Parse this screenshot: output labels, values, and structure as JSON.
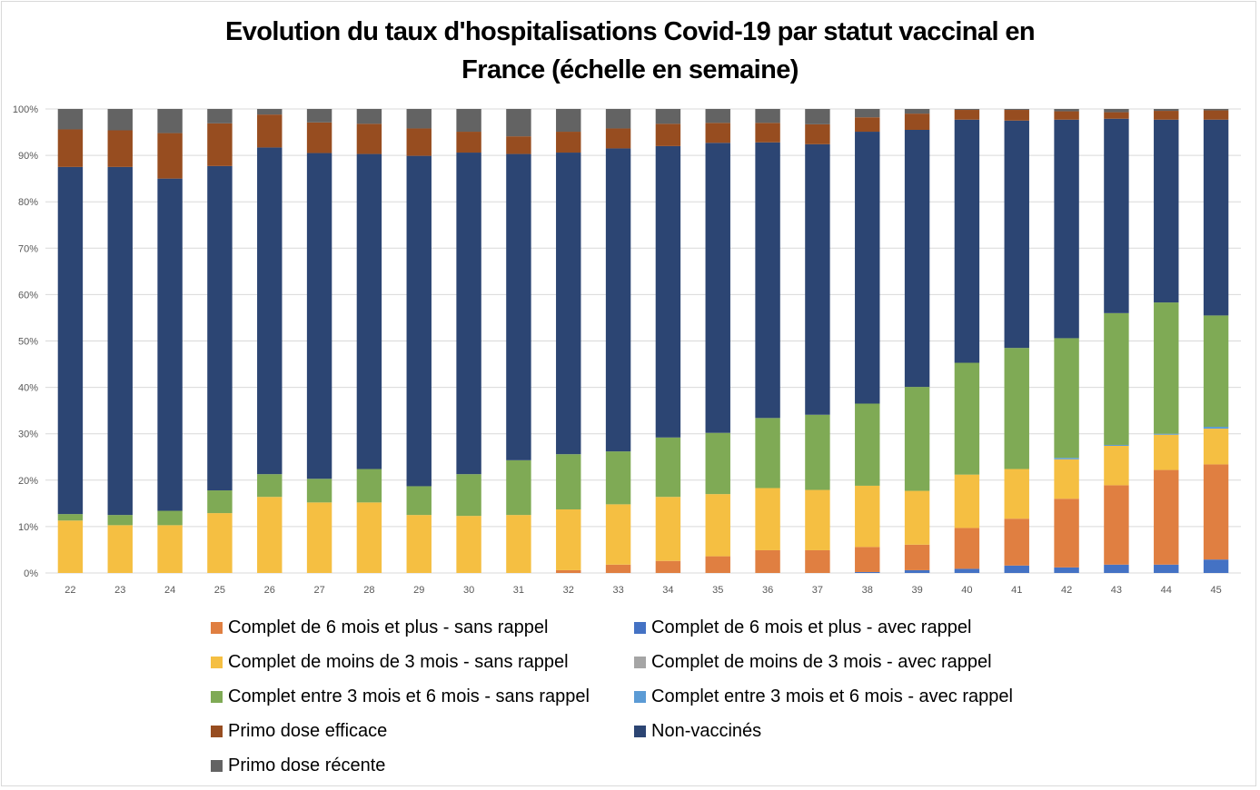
{
  "chart_data": {
    "type": "bar",
    "stacked": true,
    "normalized": true,
    "title": "Evolution du taux d'hospitalisations Covid-19 par statut vaccinal en France (échelle en semaine)",
    "title_lines": [
      "Evolution du taux d'hospitalisations Covid-19 par statut vaccinal en",
      "France (échelle en semaine)"
    ],
    "xlabel": "",
    "ylabel": "",
    "ylim": [
      0,
      100
    ],
    "yticks": [
      "0%",
      "10%",
      "20%",
      "30%",
      "40%",
      "50%",
      "60%",
      "70%",
      "80%",
      "90%",
      "100%"
    ],
    "grid": true,
    "legend_position": "bottom",
    "categories": [
      "22",
      "23",
      "24",
      "25",
      "26",
      "27",
      "28",
      "29",
      "30",
      "31",
      "32",
      "33",
      "34",
      "35",
      "36",
      "37",
      "38",
      "39",
      "40",
      "41",
      "42",
      "43",
      "44",
      "45"
    ],
    "series": [
      {
        "name": "Complet de 6 mois et plus - avec rappel",
        "color": "#4472c4",
        "values": [
          0,
          0,
          0,
          0,
          0,
          0,
          0,
          0,
          0,
          0,
          0,
          0,
          0,
          0,
          0,
          0,
          0.2,
          0.6,
          0.9,
          1.6,
          1.2,
          1.8,
          1.8,
          2.9
        ]
      },
      {
        "name": "Complet de 6 mois et plus - sans rappel",
        "color": "#e07f41",
        "values": [
          0,
          0,
          0,
          0,
          0,
          0,
          0,
          0,
          0,
          0,
          0.6,
          1.8,
          2.6,
          3.6,
          4.9,
          4.9,
          5.4,
          5.5,
          8.8,
          10.1,
          14.8,
          17.1,
          20.4,
          20.5
        ]
      },
      {
        "name": "Complet de moins de 3 mois - avec rappel",
        "color": "#a5a5a5",
        "values": [
          0,
          0,
          0,
          0,
          0,
          0,
          0,
          0,
          0,
          0,
          0,
          0,
          0,
          0,
          0,
          0,
          0,
          0,
          0,
          0,
          0,
          0,
          0,
          0
        ]
      },
      {
        "name": "Complet de moins de 3 mois - sans rappel",
        "color": "#f5bf42",
        "values": [
          11.3,
          10.3,
          10.3,
          12.9,
          16.4,
          15.2,
          15.2,
          12.5,
          12.3,
          12.5,
          13.1,
          13.0,
          13.8,
          13.4,
          13.4,
          13.0,
          13.2,
          11.6,
          11.5,
          10.7,
          8.5,
          8.5,
          7.6,
          7.7
        ]
      },
      {
        "name": "Complet entre 3 mois et 6 mois - avec rappel",
        "color": "#5b9bd5",
        "values": [
          0,
          0,
          0,
          0,
          0,
          0,
          0,
          0,
          0,
          0,
          0,
          0,
          0,
          0,
          0,
          0,
          0,
          0,
          0,
          0,
          0.3,
          0.2,
          0.2,
          0.4
        ]
      },
      {
        "name": "Complet entre 3 mois et 6 mois - sans rappel",
        "color": "#7faa55",
        "values": [
          1.4,
          2.2,
          3.1,
          4.9,
          4.9,
          5.1,
          7.2,
          6.2,
          9.0,
          11.8,
          11.9,
          11.4,
          12.8,
          13.2,
          15.1,
          16.2,
          17.7,
          22.4,
          24.1,
          26.1,
          25.8,
          28.4,
          28.3,
          24.0
        ]
      },
      {
        "name": "Non-vaccinés",
        "color": "#2c4573",
        "values": [
          74.8,
          75.0,
          71.6,
          69.9,
          70.4,
          70.2,
          67.9,
          71.2,
          69.3,
          66.0,
          65.0,
          65.3,
          62.8,
          62.5,
          59.4,
          58.3,
          58.6,
          55.4,
          52.4,
          49.0,
          47.1,
          41.9,
          39.4,
          42.2
        ]
      },
      {
        "name": "Primo dose efficace",
        "color": "#974d20",
        "values": [
          8.1,
          7.9,
          9.8,
          9.2,
          7.1,
          6.6,
          6.5,
          5.9,
          4.5,
          3.8,
          4.5,
          4.3,
          4.8,
          4.3,
          4.2,
          4.3,
          3.1,
          3.5,
          2.1,
          2.3,
          1.8,
          1.4,
          1.9,
          2.0
        ]
      },
      {
        "name": "Primo dose récente",
        "color": "#636363",
        "values": [
          4.4,
          4.6,
          5.2,
          3.1,
          1.2,
          2.9,
          3.2,
          4.2,
          4.9,
          5.9,
          4.9,
          4.2,
          3.2,
          3.0,
          3.0,
          3.3,
          1.8,
          1.0,
          0.2,
          0.2,
          0.5,
          0.7,
          0.4,
          0.3
        ]
      }
    ],
    "legend_order": [
      1,
      0,
      3,
      2,
      5,
      4,
      7,
      6,
      8
    ]
  }
}
